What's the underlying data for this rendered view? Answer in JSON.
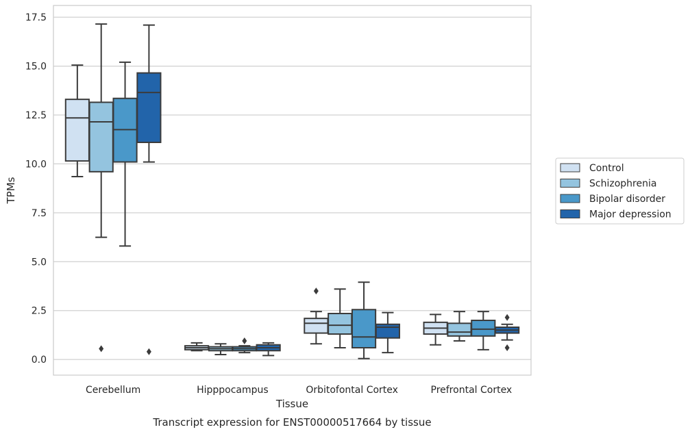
{
  "caption": "Transcript expression for ENST00000517664 by tissue",
  "chart_data": {
    "type": "boxplot",
    "title": "",
    "xlabel": "Tissue",
    "ylabel": "TPMs",
    "ylim": [
      -0.8,
      18.1
    ],
    "yticks": [
      "0.0",
      "2.5",
      "5.0",
      "7.5",
      "10.0",
      "12.5",
      "15.0",
      "17.5"
    ],
    "ytick_values": [
      0,
      2.5,
      5,
      7.5,
      10,
      12.5,
      15,
      17.5
    ],
    "grid": "horizontal",
    "legend_position": "right-outside",
    "categories": [
      "Cerebellum",
      "Hipppocampus",
      "Orbitofontal Cortex",
      "Prefrontal Cortex"
    ],
    "series": [
      {
        "name": "Control",
        "color": "#d0e1f2",
        "boxes": [
          {
            "whisker_low": 9.35,
            "q1": 10.15,
            "median": 12.35,
            "q3": 13.3,
            "whisker_high": 15.05,
            "outliers": []
          },
          {
            "whisker_low": 0.45,
            "q1": 0.5,
            "median": 0.6,
            "q3": 0.7,
            "whisker_high": 0.85,
            "outliers": []
          },
          {
            "whisker_low": 0.8,
            "q1": 1.35,
            "median": 1.85,
            "q3": 2.1,
            "whisker_high": 2.45,
            "outliers": [
              3.5
            ]
          },
          {
            "whisker_low": 0.75,
            "q1": 1.3,
            "median": 1.6,
            "q3": 1.9,
            "whisker_high": 2.3,
            "outliers": []
          }
        ]
      },
      {
        "name": "Schizophrenia",
        "color": "#94c4df",
        "boxes": [
          {
            "whisker_low": 6.25,
            "q1": 9.6,
            "median": 12.15,
            "q3": 13.15,
            "whisker_high": 17.15,
            "outliers": [
              0.55
            ]
          },
          {
            "whisker_low": 0.25,
            "q1": 0.45,
            "median": 0.55,
            "q3": 0.65,
            "whisker_high": 0.8,
            "outliers": []
          },
          {
            "whisker_low": 0.6,
            "q1": 1.3,
            "median": 1.75,
            "q3": 2.35,
            "whisker_high": 3.6,
            "outliers": []
          },
          {
            "whisker_low": 0.95,
            "q1": 1.2,
            "median": 1.4,
            "q3": 1.85,
            "whisker_high": 2.45,
            "outliers": []
          }
        ]
      },
      {
        "name": "Bipolar disorder",
        "color": "#4a98c9",
        "boxes": [
          {
            "whisker_low": 5.8,
            "q1": 10.1,
            "median": 11.75,
            "q3": 13.35,
            "whisker_high": 15.2,
            "outliers": []
          },
          {
            "whisker_low": 0.35,
            "q1": 0.45,
            "median": 0.55,
            "q3": 0.65,
            "whisker_high": 0.7,
            "outliers": [
              0.95
            ]
          },
          {
            "whisker_low": 0.05,
            "q1": 0.6,
            "median": 1.15,
            "q3": 2.55,
            "whisker_high": 3.95,
            "outliers": []
          },
          {
            "whisker_low": 0.5,
            "q1": 1.2,
            "median": 1.55,
            "q3": 2.0,
            "whisker_high": 2.45,
            "outliers": []
          }
        ]
      },
      {
        "name": "Major depression",
        "color": "#2264aa",
        "boxes": [
          {
            "whisker_low": 10.1,
            "q1": 11.1,
            "median": 13.65,
            "q3": 14.65,
            "whisker_high": 17.1,
            "outliers": [
              0.4
            ]
          },
          {
            "whisker_low": 0.2,
            "q1": 0.45,
            "median": 0.6,
            "q3": 0.75,
            "whisker_high": 0.85,
            "outliers": []
          },
          {
            "whisker_low": 0.35,
            "q1": 1.1,
            "median": 1.65,
            "q3": 1.8,
            "whisker_high": 2.4,
            "outliers": []
          },
          {
            "whisker_low": 1.0,
            "q1": 1.35,
            "median": 1.5,
            "q3": 1.65,
            "whisker_high": 1.8,
            "outliers": [
              2.15,
              0.6
            ]
          }
        ]
      }
    ]
  }
}
